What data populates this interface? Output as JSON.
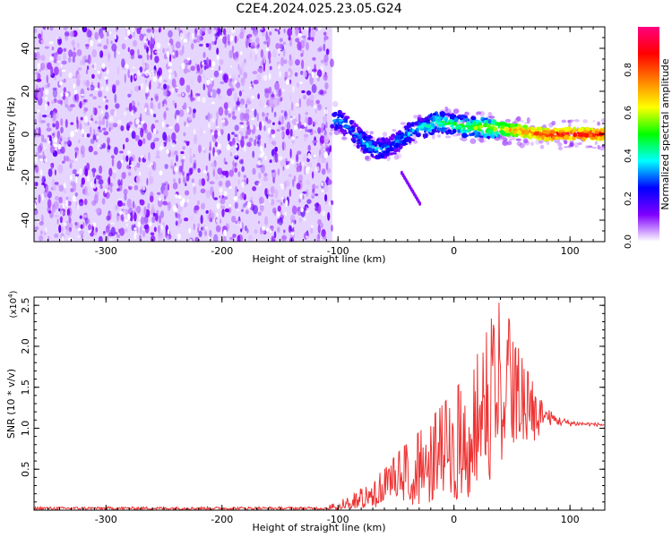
{
  "figure_title": "C2E4.2024.025.23.05.G24",
  "chart_data": [
    {
      "type": "heatmap",
      "xlabel": "Height of straight line (km)",
      "ylabel": "Frequency (Hz)",
      "xlim": [
        -362,
        130
      ],
      "ylim": [
        -50,
        50
      ],
      "xticks": [
        -300,
        -200,
        -100,
        0,
        100
      ],
      "xtick_labels": [
        "-300",
        "-200",
        "-100",
        "0",
        "100"
      ],
      "yticks": [
        -40,
        -20,
        0,
        20,
        40
      ],
      "ytick_labels": [
        "-40",
        "-20",
        "0",
        "20",
        "40"
      ],
      "noise_region_x": [
        -362,
        -105
      ],
      "ridge": {
        "x": [
          -105,
          -95,
          -85,
          -75,
          -65,
          -55,
          -45,
          -35,
          -25,
          -15,
          -5,
          5,
          20,
          35,
          50,
          65,
          80,
          95,
          110,
          130
        ],
        "freq": [
          8,
          5,
          0,
          -5,
          -7,
          -6,
          -2,
          2,
          3,
          6,
          5,
          4,
          3,
          3,
          2,
          1,
          0,
          0,
          0,
          0
        ],
        "amplitude": [
          0.35,
          0.3,
          0.3,
          0.35,
          0.35,
          0.3,
          0.3,
          0.35,
          0.4,
          0.45,
          0.45,
          0.5,
          0.55,
          0.6,
          0.7,
          0.8,
          0.85,
          0.9,
          0.9,
          0.85
        ]
      },
      "colorbar": {
        "label": "Normalized spectral amplitude",
        "range": [
          0,
          1
        ],
        "ticks": [
          0.0,
          0.2,
          0.4,
          0.6,
          0.8
        ],
        "tick_labels": [
          "0.0",
          "0.2",
          "0.4",
          "0.6",
          "0.8"
        ],
        "colors": [
          "#ffffff",
          "#8000ff",
          "#0000ff",
          "#00ffff",
          "#00ff00",
          "#ffff00",
          "#ff8000",
          "#ff0000",
          "#ff0080"
        ]
      }
    },
    {
      "type": "line",
      "xlabel": "Height of straight line (km)",
      "ylabel": "SNR (10 * v/v)",
      "scale_label": "(x10",
      "scale_exponent": "4",
      "scale_close": ")",
      "xlim": [
        -362,
        130
      ],
      "ylim": [
        0,
        2.6
      ],
      "xticks": [
        -300,
        -200,
        -100,
        0,
        100
      ],
      "xtick_labels": [
        "-300",
        "-200",
        "-100",
        "0",
        "100"
      ],
      "yticks": [
        0.5,
        1.0,
        1.5,
        2.0,
        2.5
      ],
      "ytick_labels": [
        "0.5",
        "1.0",
        "1.5",
        "2.0",
        "2.5"
      ],
      "color": "#ee3333",
      "envelope": {
        "x": [
          -362,
          -110,
          -100,
          -85,
          -75,
          -60,
          -45,
          -30,
          -15,
          0,
          15,
          25,
          35,
          42,
          50,
          60,
          70,
          80,
          90,
          100,
          110,
          130
        ],
        "max": [
          0.04,
          0.05,
          0.1,
          0.22,
          0.32,
          0.5,
          0.75,
          0.95,
          1.2,
          1.45,
          1.75,
          2.05,
          2.45,
          2.6,
          2.2,
          1.8,
          1.5,
          1.25,
          1.15,
          1.1,
          1.08,
          1.06
        ],
        "min": [
          0.0,
          0.0,
          0.0,
          0.02,
          0.03,
          0.03,
          0.04,
          0.05,
          0.06,
          0.08,
          0.15,
          0.25,
          0.35,
          0.45,
          0.6,
          0.75,
          0.85,
          0.92,
          0.96,
          0.98,
          1.0,
          1.0
        ]
      }
    }
  ]
}
